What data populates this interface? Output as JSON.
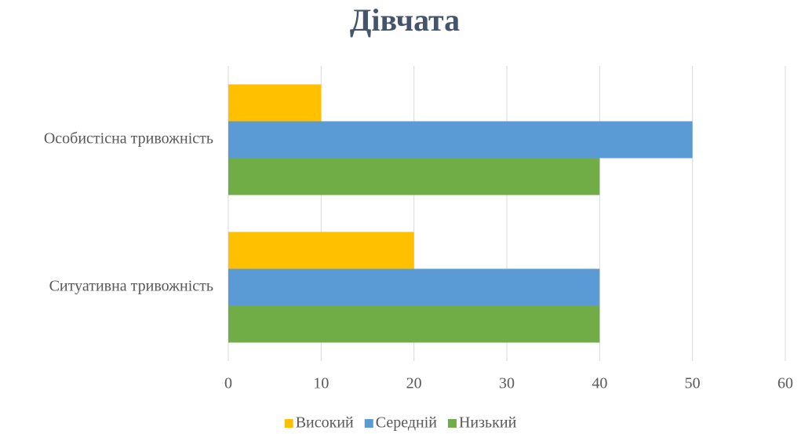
{
  "chart_data": {
    "type": "hbar",
    "title": "Дівчата",
    "categories": [
      "Особистісна тривожність",
      "Ситуативна тривожність"
    ],
    "series": [
      {
        "name": "Високий",
        "color": "#ffc000",
        "values": [
          10,
          20
        ]
      },
      {
        "name": "Середній",
        "color": "#5b9bd5",
        "values": [
          50,
          40
        ]
      },
      {
        "name": "Низький",
        "color": "#70ad47",
        "values": [
          40,
          40
        ]
      }
    ],
    "xlim": [
      0,
      60
    ],
    "xticks": [
      0,
      10,
      20,
      30,
      40,
      50,
      60
    ],
    "grid": true,
    "legend": "bottom"
  }
}
